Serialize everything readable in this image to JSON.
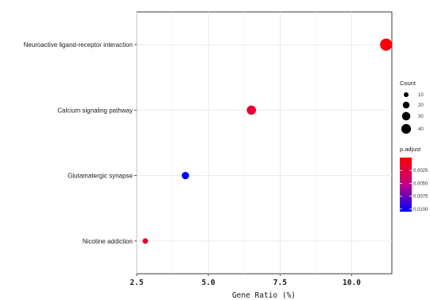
{
  "chart_data": {
    "type": "scatter",
    "title": "",
    "xlabel": "Gene Ratio (%)",
    "ylabel": "",
    "xlim": [
      2.5,
      11.4
    ],
    "x_ticks": [
      "2.5",
      "5.0",
      "7.5",
      "10.0"
    ],
    "x_tick_values": [
      2.5,
      5.0,
      7.5,
      10.0
    ],
    "grid": true,
    "legend_placement": "right",
    "categories": [
      "Nicotine addiction",
      "Glutamatergic synapse",
      "Calcium signaling pathway",
      "Neuroactive ligand-receptor interaction"
    ],
    "points": [
      {
        "category": "Nicotine addiction",
        "gene_ratio": 2.8,
        "count": 5,
        "p_adjust": 0.0015
      },
      {
        "category": "Glutamatergic synapse",
        "gene_ratio": 4.2,
        "count": 9,
        "p_adjust": 0.0105
      },
      {
        "category": "Calcium signaling pathway",
        "gene_ratio": 6.5,
        "count": 14,
        "p_adjust": 0.002
      },
      {
        "category": "Neuroactive ligand-receptor interaction",
        "gene_ratio": 11.2,
        "count": 24,
        "p_adjust": 0.0005
      }
    ],
    "size_legend": {
      "title": "Count",
      "values": [
        10,
        20,
        30,
        40
      ],
      "labels": [
        "10",
        "20",
        "30",
        "40"
      ]
    },
    "color_legend": {
      "title": "p.adjust",
      "values": [
        0.0025,
        0.005,
        0.0075,
        0.01
      ],
      "labels": [
        "0.0025",
        "0.0050",
        "0.0075",
        "0.0100"
      ],
      "range": [
        0.0,
        0.0105
      ],
      "low_color": "#ff0000",
      "high_color": "#0000ff"
    }
  }
}
